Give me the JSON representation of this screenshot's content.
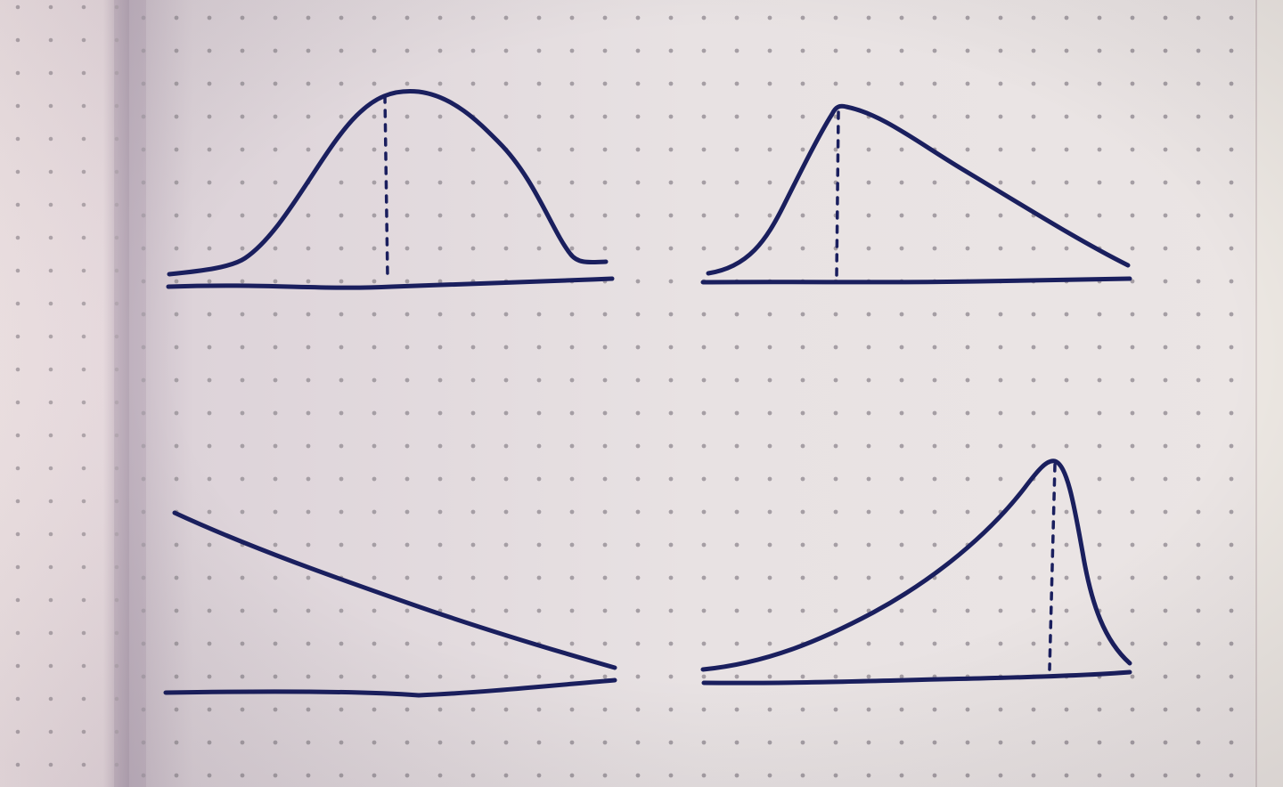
{
  "colors": {
    "ink": "#1a1f5e",
    "paper": "#e9e3e4",
    "paper_shadow": "#cdbfcc",
    "left_page": "#f1e6e8",
    "dot": "#a49ca3"
  },
  "sketches": [
    {
      "name": "symmetric-bell-curve",
      "shape": "symmetric",
      "has_peak_marker": true
    },
    {
      "name": "right-skewed-curve",
      "shape": "right-skewed",
      "has_peak_marker": true
    },
    {
      "name": "decreasing-line",
      "shape": "monotonic-decreasing",
      "has_peak_marker": false
    },
    {
      "name": "left-skewed-curve",
      "shape": "left-skewed",
      "has_peak_marker": true
    }
  ]
}
